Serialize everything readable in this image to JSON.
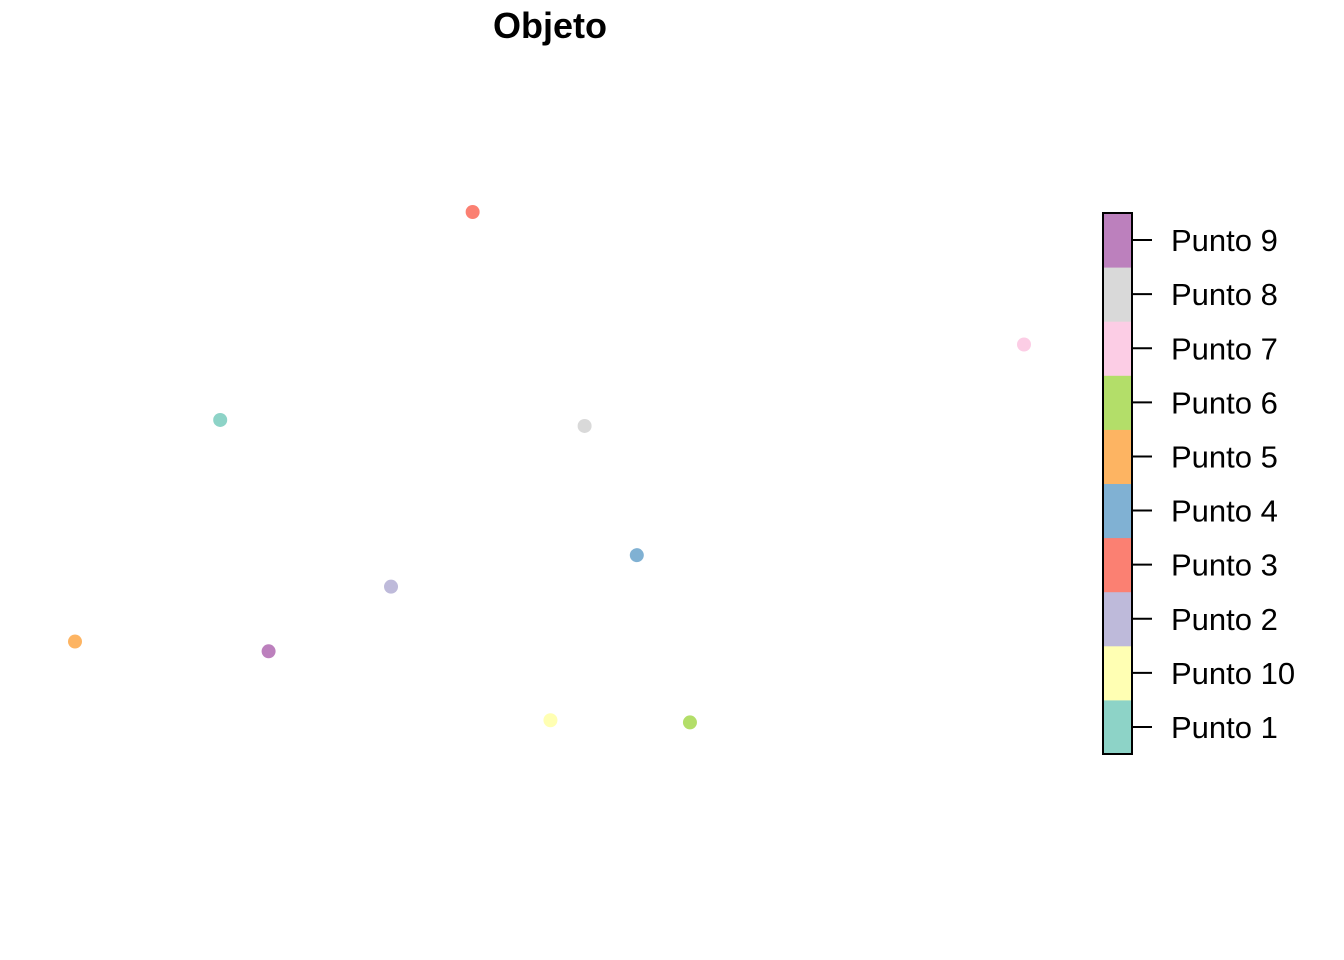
{
  "chart_data": {
    "type": "scatter",
    "title": "Objeto",
    "xlabel": "",
    "ylabel": "",
    "grid": false,
    "axes_shown": false,
    "legend": {
      "placement": "right",
      "style": "color-key",
      "entries": [
        {
          "label": "Punto 1",
          "color": "#8DD3C7"
        },
        {
          "label": "Punto 10",
          "color": "#FFFFB3"
        },
        {
          "label": "Punto 2",
          "color": "#BEBADA"
        },
        {
          "label": "Punto 3",
          "color": "#FB8072"
        },
        {
          "label": "Punto 4",
          "color": "#80B1D3"
        },
        {
          "label": "Punto 5",
          "color": "#FDB462"
        },
        {
          "label": "Punto 6",
          "color": "#B3DE69"
        },
        {
          "label": "Punto 7",
          "color": "#FCCDE5"
        },
        {
          "label": "Punto 8",
          "color": "#D9D9D9"
        },
        {
          "label": "Punto 9",
          "color": "#BC80BD"
        }
      ]
    },
    "points": [
      {
        "label": "Punto 1",
        "x": 0.153,
        "y": 0.617,
        "color": "#8DD3C7"
      },
      {
        "label": "Punto 10",
        "x": 0.501,
        "y": 0.064,
        "color": "#FFFFB3"
      },
      {
        "label": "Punto 2",
        "x": 0.333,
        "y": 0.31,
        "color": "#BEBADA"
      },
      {
        "label": "Punto 3",
        "x": 0.419,
        "y": 1.0,
        "color": "#FB8072"
      },
      {
        "label": "Punto 4",
        "x": 0.592,
        "y": 0.368,
        "color": "#80B1D3"
      },
      {
        "label": "Punto 5",
        "x": 0.0,
        "y": 0.209,
        "color": "#FDB462"
      },
      {
        "label": "Punto 6",
        "x": 0.648,
        "y": 0.06,
        "color": "#B3DE69"
      },
      {
        "label": "Punto 7",
        "x": 1.0,
        "y": 0.756,
        "color": "#FCCDE5"
      },
      {
        "label": "Punto 8",
        "x": 0.537,
        "y": 0.606,
        "color": "#D9D9D9"
      },
      {
        "label": "Punto 9",
        "x": 0.204,
        "y": 0.191,
        "color": "#BC80BD"
      }
    ]
  }
}
